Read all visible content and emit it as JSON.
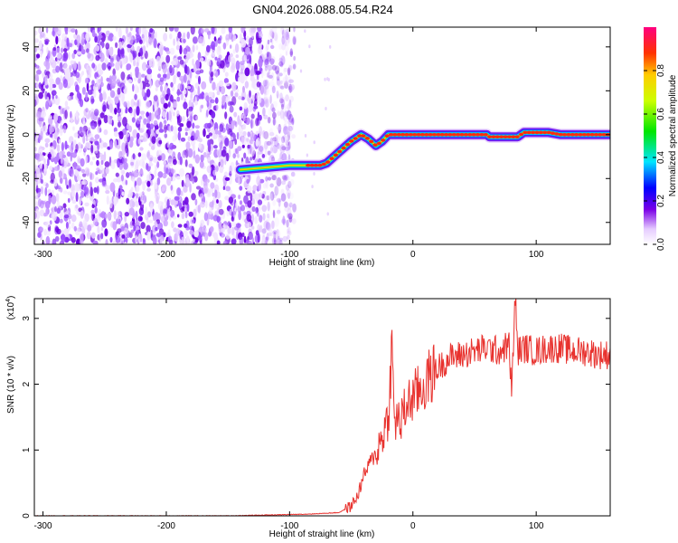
{
  "title": "GN04.2026.088.05.54.R24",
  "chart_data": [
    {
      "type": "heatmap",
      "xlabel": "Height of straight line (km)",
      "ylabel": "Frequency (Hz)",
      "xlim": [
        -307,
        160
      ],
      "ylim": [
        -50,
        49
      ],
      "x_ticks": [
        -300,
        -200,
        -100,
        0,
        100
      ],
      "x_tick_labels": [
        "-300",
        "-200",
        "-100",
        "0",
        "100"
      ],
      "y_ticks": [
        -40,
        -20,
        0,
        20,
        40
      ],
      "y_tick_labels": [
        "-40",
        "-20",
        "0",
        "20",
        "40"
      ],
      "grid": false,
      "noise_region_x": [
        -307,
        -96
      ],
      "ridge": {
        "x": [
          -140,
          -120,
          -100,
          -90,
          -80,
          -75,
          -70,
          -60,
          -50,
          -42,
          -36,
          -30,
          -25,
          -20,
          -12,
          0,
          20,
          40,
          60,
          62,
          75,
          85,
          90,
          100,
          110,
          120,
          140,
          160
        ],
        "y": [
          -16,
          -15,
          -14,
          -14,
          -14,
          -14,
          -13,
          -8,
          -3,
          0,
          -2,
          -5,
          -3,
          0,
          0,
          0,
          0,
          0,
          0,
          -1,
          -1,
          -1,
          1,
          1,
          1,
          0,
          0,
          0
        ]
      },
      "colorbar": {
        "label": "Normalized spectral amplitude",
        "range": [
          0,
          1
        ],
        "ticks": [
          0.0,
          0.2,
          0.4,
          0.6,
          0.8
        ],
        "tick_labels": [
          "0.0",
          "0.2",
          "0.4",
          "0.6",
          "0.8"
        ]
      }
    },
    {
      "type": "line",
      "xlabel": "Height of straight line (km)",
      "ylabel": "SNR (10 * v/v)",
      "y_scale_note": "(x10^4)",
      "y_scale_base": "(x10",
      "y_scale_exp": "4",
      "y_scale_close": ")",
      "xlim": [
        -307,
        160
      ],
      "ylim": [
        0,
        3.3
      ],
      "x_ticks": [
        -300,
        -200,
        -100,
        0,
        100
      ],
      "x_tick_labels": [
        "-300",
        "-200",
        "-100",
        "0",
        "100"
      ],
      "y_ticks": [
        0,
        1,
        2,
        3
      ],
      "y_tick_labels": [
        "0",
        "1",
        "2",
        "3"
      ],
      "grid": false,
      "color": "#e8322e",
      "series": [
        {
          "x": [
            -307,
            -150,
            -100,
            -80,
            -60,
            -50,
            -45,
            -40,
            -35,
            -30,
            -25,
            -20,
            -17,
            -15,
            -13,
            -10,
            -5,
            0,
            5,
            10,
            15,
            20,
            30,
            40,
            50,
            60,
            70,
            78,
            80,
            83,
            85,
            90,
            100,
            110,
            120,
            130,
            140,
            150,
            160
          ],
          "y": [
            0.0,
            0.0,
            0.02,
            0.03,
            0.05,
            0.15,
            0.3,
            0.6,
            0.8,
            0.95,
            1.2,
            1.5,
            2.55,
            1.4,
            1.5,
            1.4,
            1.7,
            1.8,
            1.9,
            2.0,
            2.15,
            2.25,
            2.4,
            2.45,
            2.5,
            2.55,
            2.5,
            2.6,
            1.9,
            3.3,
            2.5,
            2.55,
            2.5,
            2.55,
            2.55,
            2.5,
            2.5,
            2.45,
            2.45
          ]
        }
      ]
    }
  ]
}
